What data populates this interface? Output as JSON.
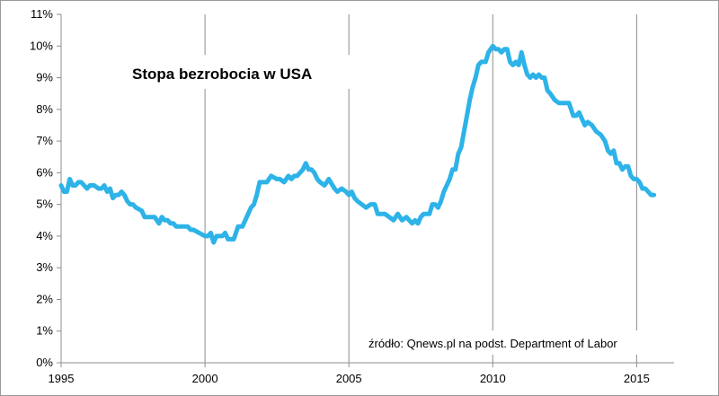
{
  "chart_data": {
    "type": "line",
    "title": "Stopa bezrobocia w USA",
    "annotation": "źródło: Qnews.pl na podst. Department of Labor",
    "xlabel": "",
    "ylabel": "",
    "xlim": [
      1995,
      2016.3
    ],
    "ylim": [
      0,
      11
    ],
    "x_ticks": [
      1995,
      2000,
      2005,
      2010,
      2015
    ],
    "y_ticks": [
      "0%",
      "1%",
      "2%",
      "3%",
      "4%",
      "5%",
      "6%",
      "7%",
      "8%",
      "9%",
      "10%",
      "11%"
    ],
    "grid": "vertical",
    "legend": "none",
    "series": [
      {
        "color": "#2db3e8",
        "x": [
          1995.0,
          1995.1,
          1995.2,
          1995.3,
          1995.4,
          1995.5,
          1995.6,
          1995.7,
          1995.8,
          1995.9,
          1996.0,
          1996.15,
          1996.3,
          1996.4,
          1996.5,
          1996.6,
          1996.7,
          1996.8,
          1996.9,
          1997.0,
          1997.1,
          1997.2,
          1997.3,
          1997.4,
          1997.5,
          1997.6,
          1997.8,
          1997.9,
          1998.0,
          1998.1,
          1998.25,
          1998.4,
          1998.5,
          1998.6,
          1998.7,
          1998.8,
          1998.9,
          1999.0,
          1999.2,
          1999.4,
          1999.5,
          1999.6,
          1999.8,
          2000.0,
          2000.1,
          2000.2,
          2000.3,
          2000.4,
          2000.5,
          2000.6,
          2000.7,
          2000.8,
          2000.9,
          2001.0,
          2001.15,
          2001.3,
          2001.45,
          2001.6,
          2001.7,
          2001.8,
          2001.9,
          2002.0,
          2002.15,
          2002.3,
          2002.5,
          2002.6,
          2002.75,
          2002.9,
          2003.0,
          2003.1,
          2003.2,
          2003.3,
          2003.4,
          2003.5,
          2003.6,
          2003.7,
          2003.8,
          2003.9,
          2004.0,
          2004.15,
          2004.3,
          2004.5,
          2004.6,
          2004.75,
          2004.9,
          2005.0,
          2005.1,
          2005.2,
          2005.3,
          2005.45,
          2005.6,
          2005.75,
          2005.9,
          2006.0,
          2006.1,
          2006.25,
          2006.4,
          2006.55,
          2006.7,
          2006.85,
          2007.0,
          2007.1,
          2007.2,
          2007.3,
          2007.4,
          2007.5,
          2007.6,
          2007.7,
          2007.8,
          2007.9,
          2008.0,
          2008.1,
          2008.2,
          2008.3,
          2008.4,
          2008.5,
          2008.6,
          2008.7,
          2008.8,
          2008.9,
          2009.0,
          2009.1,
          2009.2,
          2009.3,
          2009.4,
          2009.5,
          2009.6,
          2009.75,
          2009.85,
          2010.0,
          2010.1,
          2010.2,
          2010.3,
          2010.4,
          2010.5,
          2010.6,
          2010.7,
          2010.8,
          2010.9,
          2011.0,
          2011.1,
          2011.2,
          2011.3,
          2011.4,
          2011.5,
          2011.6,
          2011.7,
          2011.8,
          2011.9,
          2012.0,
          2012.15,
          2012.3,
          2012.5,
          2012.65,
          2012.8,
          2012.9,
          2013.0,
          2013.1,
          2013.2,
          2013.3,
          2013.45,
          2013.6,
          2013.75,
          2013.9,
          2014.0,
          2014.1,
          2014.2,
          2014.3,
          2014.4,
          2014.5,
          2014.6,
          2014.7,
          2014.8,
          2014.9,
          2015.0,
          2015.1,
          2015.2,
          2015.3,
          2015.4,
          2015.5,
          2015.6
        ],
        "values": [
          5.6,
          5.4,
          5.4,
          5.8,
          5.6,
          5.6,
          5.7,
          5.7,
          5.6,
          5.5,
          5.6,
          5.6,
          5.5,
          5.5,
          5.6,
          5.4,
          5.5,
          5.2,
          5.3,
          5.3,
          5.4,
          5.3,
          5.1,
          5.0,
          5.0,
          4.9,
          4.8,
          4.6,
          4.6,
          4.6,
          4.6,
          4.4,
          4.6,
          4.5,
          4.5,
          4.4,
          4.4,
          4.3,
          4.3,
          4.3,
          4.2,
          4.2,
          4.1,
          4.0,
          4.0,
          4.1,
          3.8,
          4.0,
          4.0,
          4.0,
          4.1,
          3.9,
          3.9,
          3.9,
          4.3,
          4.3,
          4.6,
          4.9,
          5.0,
          5.3,
          5.7,
          5.7,
          5.7,
          5.9,
          5.8,
          5.8,
          5.7,
          5.9,
          5.8,
          5.9,
          5.9,
          6.0,
          6.1,
          6.3,
          6.1,
          6.1,
          6.0,
          5.8,
          5.7,
          5.6,
          5.8,
          5.5,
          5.4,
          5.5,
          5.4,
          5.3,
          5.4,
          5.2,
          5.1,
          5.0,
          4.9,
          5.0,
          5.0,
          4.7,
          4.7,
          4.7,
          4.6,
          4.5,
          4.7,
          4.5,
          4.6,
          4.5,
          4.4,
          4.5,
          4.4,
          4.6,
          4.7,
          4.7,
          4.7,
          5.0,
          5.0,
          4.9,
          5.1,
          5.4,
          5.6,
          5.8,
          6.1,
          6.1,
          6.6,
          6.8,
          7.3,
          7.8,
          8.3,
          8.7,
          9.0,
          9.4,
          9.5,
          9.5,
          9.8,
          10.0,
          9.9,
          9.9,
          9.8,
          9.9,
          9.9,
          9.5,
          9.4,
          9.5,
          9.4,
          9.8,
          9.4,
          9.1,
          9.0,
          9.1,
          9.0,
          9.1,
          9.0,
          9.0,
          8.6,
          8.5,
          8.3,
          8.2,
          8.2,
          8.2,
          7.8,
          7.8,
          7.9,
          7.7,
          7.5,
          7.6,
          7.5,
          7.3,
          7.2,
          7.0,
          6.7,
          6.6,
          6.7,
          6.3,
          6.3,
          6.1,
          6.2,
          6.2,
          5.9,
          5.8,
          5.8,
          5.7,
          5.5,
          5.5,
          5.4,
          5.3,
          5.3
        ]
      }
    ]
  }
}
